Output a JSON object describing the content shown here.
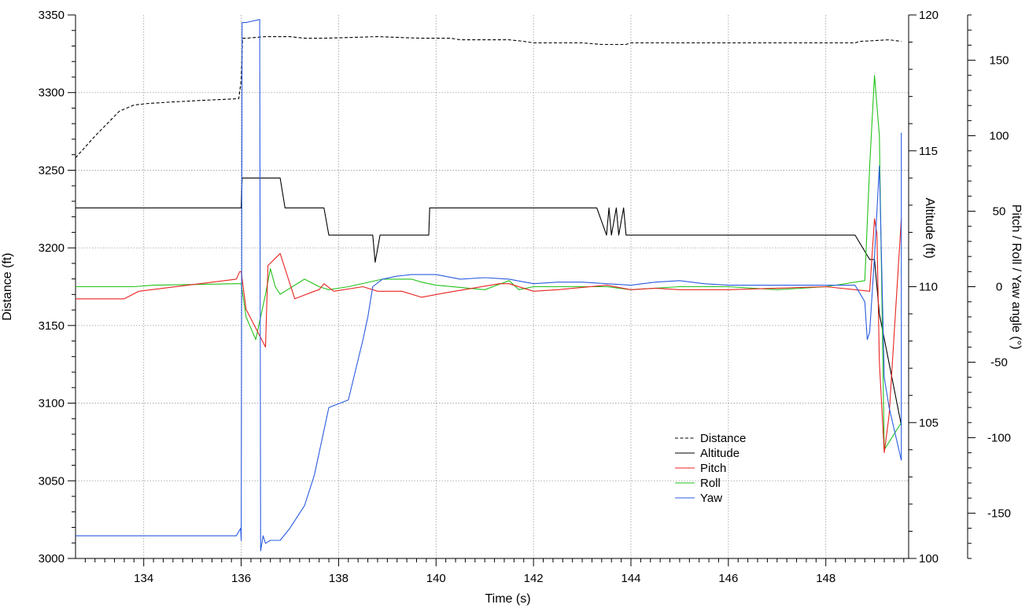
{
  "chart_data": {
    "type": "line",
    "xlabel": "Time (s)",
    "ylabel_left": "Distance (ft)",
    "ylabel_right1": "Altitude (ft)",
    "ylabel_right2": "Pitch / Roll / Yaw angle (°)",
    "xlim": [
      132.6,
      149.7
    ],
    "ylim_left": [
      3000,
      3350
    ],
    "ylim_right1": [
      100,
      120
    ],
    "ylim_right2": [
      -180,
      180
    ],
    "xticks": [
      134,
      136,
      138,
      140,
      142,
      144,
      146,
      148
    ],
    "yticks_left": [
      3000,
      3050,
      3100,
      3150,
      3200,
      3250,
      3300,
      3350
    ],
    "yticks_right1": [
      100,
      105,
      110,
      115,
      120
    ],
    "yticks_right2": [
      -150,
      -100,
      -50,
      0,
      50,
      100,
      150
    ],
    "grid": true,
    "legend_position": "lower-center-right",
    "colors": {
      "distance": "#000000",
      "altitude": "#000000",
      "pitch": "#e8231f",
      "roll": "#22c21a",
      "yaw": "#2a5ce0"
    },
    "series": [
      {
        "name": "Distance",
        "axis": "left",
        "style": "dashed",
        "x": [
          132.6,
          133.0,
          133.5,
          133.8,
          134.1,
          134.6,
          135.2,
          135.9,
          135.95,
          136.0,
          136.03,
          136.1,
          136.5,
          137.0,
          137.3,
          137.7,
          138.8,
          139.7,
          140.3,
          140.5,
          141.5,
          141.8,
          142.0,
          143.0,
          143.4,
          143.9,
          144.0,
          148.6,
          148.7,
          149.3,
          149.55
        ],
        "y": [
          3258,
          3272,
          3288,
          3292,
          3293,
          3294,
          3295,
          3296,
          3296,
          3308,
          3335,
          3335,
          3336,
          3336,
          3335,
          3335,
          3336,
          3335,
          3335,
          3334,
          3334,
          3333,
          3332,
          3332,
          3331,
          3331,
          3332,
          3332,
          3333,
          3334,
          3333
        ]
      },
      {
        "name": "Altitude",
        "axis": "right1",
        "style": "solid",
        "x": [
          132.6,
          136.0,
          136.02,
          136.8,
          136.9,
          137.7,
          137.8,
          138.7,
          138.75,
          138.85,
          139.85,
          139.87,
          143.3,
          143.5,
          143.55,
          143.6,
          143.7,
          143.75,
          143.85,
          143.9,
          143.95,
          148.6,
          148.9,
          149.0,
          149.1,
          149.55
        ],
        "y": [
          112.9,
          112.9,
          114.0,
          114.0,
          112.9,
          112.9,
          111.9,
          111.9,
          110.9,
          111.9,
          111.9,
          112.9,
          112.9,
          111.9,
          112.9,
          111.9,
          112.9,
          111.9,
          112.9,
          111.9,
          111.9,
          111.9,
          111.0,
          111.0,
          109.0,
          104.9
        ]
      },
      {
        "name": "Pitch",
        "axis": "right2",
        "style": "solid",
        "x": [
          132.6,
          133.6,
          133.9,
          135.9,
          135.97,
          136.0,
          136.1,
          136.5,
          136.55,
          136.8,
          136.9,
          137.1,
          137.5,
          137.6,
          137.7,
          137.9,
          138.5,
          138.8,
          139.3,
          139.7,
          140.2,
          141.3,
          141.5,
          142.0,
          142.5,
          143.5,
          144.0,
          144.5,
          145.0,
          146.0,
          147.0,
          148.0,
          148.6,
          148.9,
          149.0,
          149.05,
          149.1,
          149.2,
          149.3,
          149.55
        ],
        "y": [
          -8,
          -8,
          -3,
          5,
          10,
          10,
          -15,
          -40,
          14,
          22,
          12,
          -8,
          -3,
          -2,
          2,
          -3,
          0,
          -3,
          -3,
          -7,
          -4,
          2,
          2,
          -3,
          -2,
          1,
          -2,
          -1,
          -2,
          -2,
          -1,
          0,
          -2,
          -3,
          45,
          35,
          -50,
          -110,
          -85,
          45
        ]
      },
      {
        "name": "Roll",
        "axis": "right2",
        "style": "solid",
        "x": [
          132.6,
          133.8,
          134.2,
          135.9,
          136.0,
          136.1,
          136.3,
          136.5,
          136.6,
          136.7,
          136.8,
          136.9,
          137.3,
          137.6,
          137.8,
          138.2,
          138.9,
          139.5,
          139.7,
          140.0,
          141.0,
          141.5,
          141.7,
          142.0,
          142.5,
          143.5,
          144.0,
          145.0,
          146.0,
          147.0,
          148.0,
          148.8,
          148.9,
          149.0,
          149.1,
          149.2,
          149.55
        ],
        "y": [
          0,
          0,
          1,
          2,
          2,
          -20,
          -35,
          -5,
          12,
          0,
          -5,
          -3,
          5,
          0,
          -2,
          0,
          5,
          5,
          3,
          1,
          -2,
          4,
          -2,
          0,
          0,
          0,
          -2,
          0,
          0,
          -2,
          0,
          4,
          80,
          140,
          100,
          -108,
          -90
        ]
      },
      {
        "name": "Yaw",
        "axis": "right2",
        "style": "solid",
        "x": [
          132.6,
          135.9,
          135.99,
          136.0,
          136.02,
          136.1,
          136.38,
          136.4,
          136.45,
          136.5,
          136.6,
          136.8,
          137.0,
          137.3,
          137.5,
          137.8,
          138.2,
          138.5,
          138.6,
          138.7,
          138.9,
          139.2,
          139.5,
          140.0,
          140.5,
          141.0,
          141.5,
          142.0,
          142.5,
          143.0,
          143.5,
          144.0,
          144.5,
          145.0,
          145.5,
          146.0,
          147.0,
          148.0,
          148.6,
          148.8,
          148.85,
          148.9,
          149.0,
          149.1,
          149.2,
          149.3,
          149.55
        ],
        "y": [
          -165,
          -165,
          -160,
          -168,
          175,
          175,
          177,
          -175,
          -165,
          -170,
          -168,
          -168,
          -160,
          -145,
          -125,
          -80,
          -75,
          -35,
          -20,
          0,
          5,
          7,
          8,
          8,
          5,
          6,
          5,
          2,
          3,
          3,
          2,
          1,
          3,
          4,
          2,
          1,
          1,
          1,
          1,
          -10,
          -35,
          -30,
          20,
          80,
          -60,
          -80,
          -115
        ]
      },
      {
        "name": "",
        "axis": "right2",
        "style": "solid",
        "color_key": "yaw",
        "x": [
          149.55,
          149.55
        ],
        "y": [
          -115,
          102
        ]
      }
    ]
  }
}
